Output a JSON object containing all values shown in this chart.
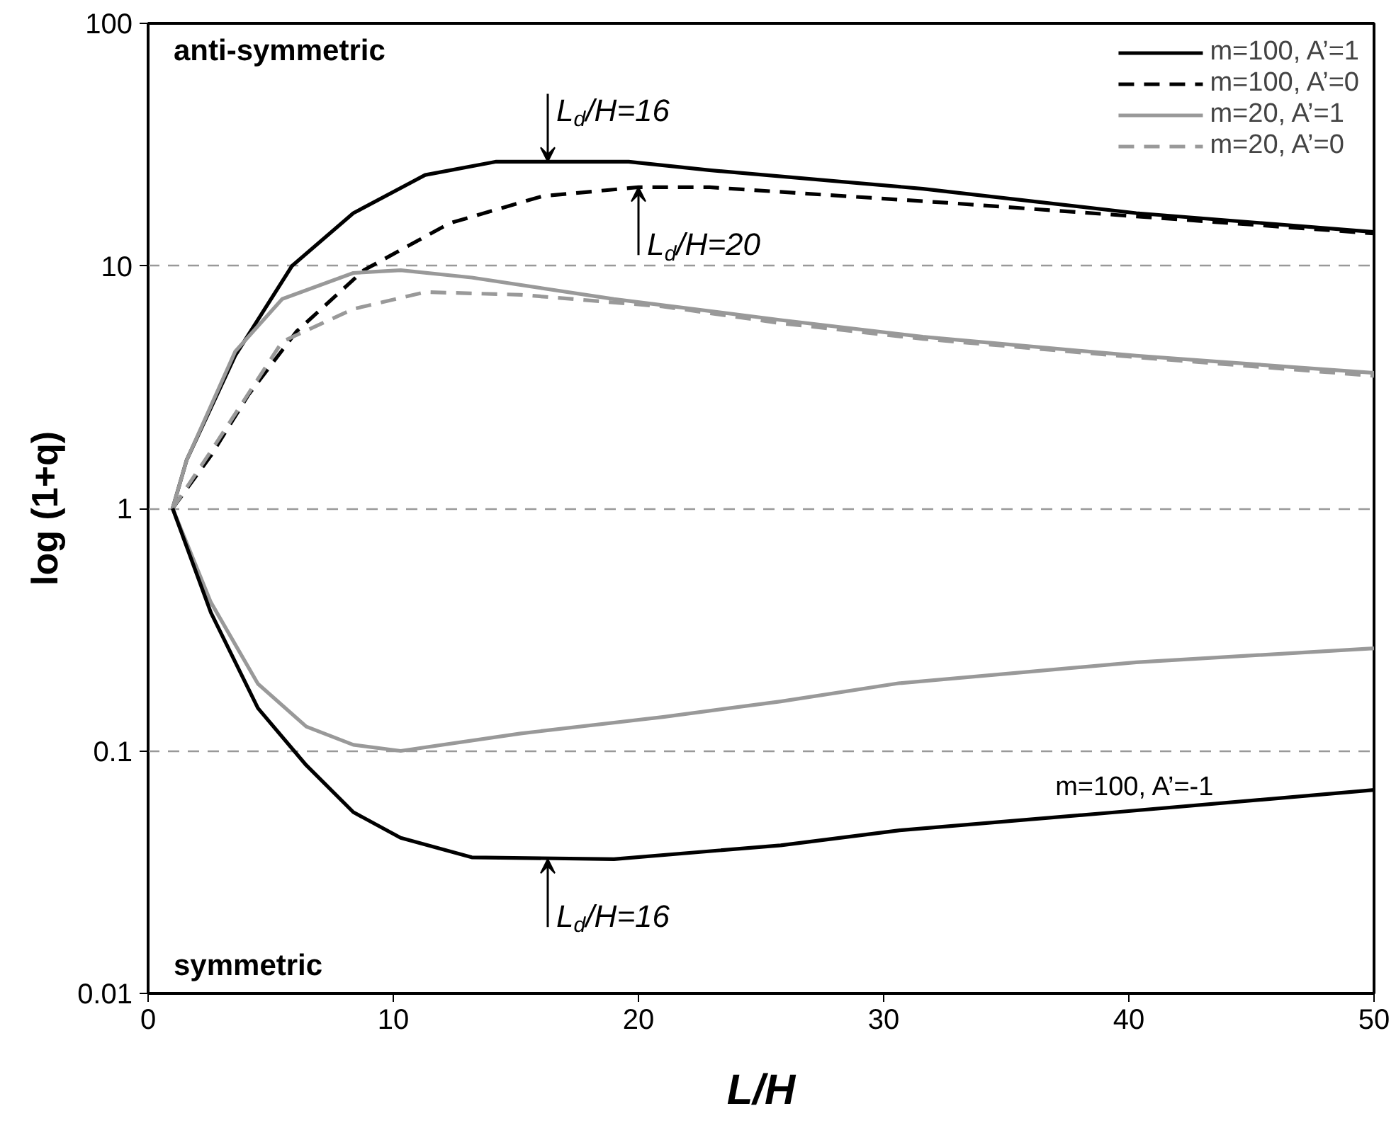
{
  "chart_data": {
    "type": "line",
    "xlabel": "L/H",
    "ylabel": "log (1+q)",
    "log": "y",
    "xlim": [
      0,
      50
    ],
    "xticks": [
      0,
      10,
      20,
      30,
      40,
      50
    ],
    "ylim": [
      0.01,
      100
    ],
    "yticks": [
      0.01,
      0.1,
      1,
      10,
      100
    ],
    "grid": "y",
    "legend": "top right",
    "series": [
      {
        "name": "m=100, A’=1",
        "color": "#000000",
        "line_style": "solid",
        "x": [
          1,
          1.57,
          3.55,
          5.87,
          8.37,
          11.3,
          14.2,
          19.6,
          22.9,
          31.6,
          40.3,
          50
        ],
        "values": [
          1,
          1.58,
          4.26,
          10,
          16.5,
          23.7,
          26.9,
          26.9,
          24.8,
          20.8,
          16.5,
          13.8
        ]
      },
      {
        "name": "m=100, A’=0",
        "color": "#000000",
        "line_style": "dashed",
        "x": [
          1,
          2.56,
          4.1,
          6.05,
          8.8,
          12.3,
          16.1,
          20,
          22.9,
          32.6,
          40.3,
          50
        ],
        "values": [
          1,
          1.65,
          2.95,
          5.36,
          9.6,
          15,
          19.4,
          21.1,
          21.1,
          18.2,
          16,
          13.6
        ]
      },
      {
        "name": "m=20, A’=1",
        "color": "#999999",
        "line_style": "solid",
        "x": [
          1,
          1.57,
          3.55,
          5.47,
          8.37,
          10.3,
          13.2,
          19,
          25.8,
          31.6,
          40.3,
          50
        ],
        "values": [
          1,
          1.58,
          4.43,
          7.3,
          9.35,
          9.6,
          8.95,
          7.3,
          5.98,
          5.1,
          4.26,
          3.62
        ]
      },
      {
        "name": "m=20, A’=0",
        "color": "#999999",
        "line_style": "dashed",
        "x": [
          1,
          2.56,
          5.47,
          8.37,
          11.3,
          15.2,
          21,
          25.8,
          31.6,
          40.3,
          50
        ],
        "values": [
          1,
          1.72,
          4.87,
          6.64,
          7.8,
          7.6,
          6.8,
          5.8,
          5.0,
          4.2,
          3.52
        ]
      },
      {
        "color": "#999999",
        "line_style": "solid",
        "x": [
          1,
          2.56,
          4.48,
          6.45,
          8.37,
          10.3,
          15.2,
          21,
          25.8,
          30.6,
          40.3,
          50
        ],
        "values": [
          1,
          0.41,
          0.189,
          0.126,
          0.106,
          0.1,
          0.118,
          0.138,
          0.16,
          0.19,
          0.232,
          0.265
        ]
      },
      {
        "color": "#000000",
        "line_style": "solid",
        "x": [
          1,
          2.56,
          4.48,
          6.45,
          8.37,
          10.3,
          13.2,
          19,
          25.8,
          30.6,
          39.4,
          50
        ],
        "values": [
          1,
          0.372,
          0.15,
          0.0873,
          0.0559,
          0.0438,
          0.0364,
          0.0358,
          0.0408,
          0.047,
          0.0558,
          0.069
        ]
      }
    ],
    "annotations": [
      "anti-symmetric",
      "symmetric",
      {
        "text": "L$_{d}$/H=16",
        "x": 16.3,
        "y": 26.9
      },
      {
        "text": "L$_{d}$/H=20",
        "x": 20,
        "y": 21.1
      },
      {
        "text": "L$_{d}$/H=16",
        "x": 16.3,
        "y": 0.0358
      },
      {
        "text": "m=100, A’=-1",
        "x": 37,
        "y": 0.0534
      }
    ]
  }
}
